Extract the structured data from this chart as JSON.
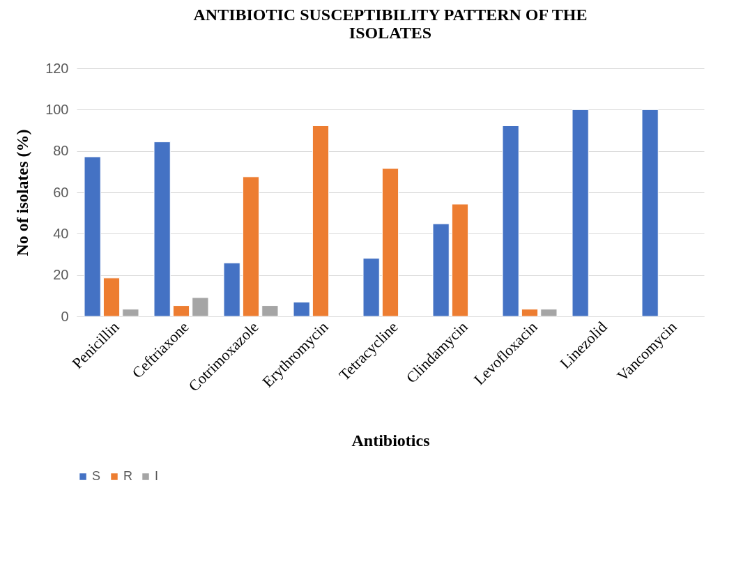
{
  "chart_data": {
    "type": "bar",
    "title": "ANTIBIOTIC SUSCEPTIBILITY PATTERN OF THE ISOLATES",
    "xlabel": "Antibiotics",
    "ylabel": "No of isolates (%)",
    "categories": [
      "Penicillin",
      "Ceftriaxone",
      "Cotrimoxazole",
      "Erythromycin",
      "Tetracycline",
      "Clindamycin",
      "Levofloxacin",
      "Linezolid",
      "Vancomycin"
    ],
    "series": [
      {
        "name": "S",
        "color": "#4472c4",
        "values": [
          77.2,
          84.4,
          25.9,
          6.9,
          28.1,
          44.8,
          92.2,
          100,
          100
        ]
      },
      {
        "name": "R",
        "color": "#ed7d31",
        "values": [
          18.6,
          5.2,
          67.5,
          92.2,
          71.6,
          54.3,
          3.5,
          null,
          null
        ]
      },
      {
        "name": "I",
        "color": "#a5a5a5",
        "values": [
          3.5,
          9.1,
          5.2,
          null,
          null,
          null,
          3.5,
          null,
          null
        ]
      }
    ],
    "ylim": [
      0,
      120
    ],
    "yticks": [
      0,
      20,
      40,
      60,
      80,
      100,
      120
    ],
    "grid": "y",
    "legend": "bottom"
  }
}
